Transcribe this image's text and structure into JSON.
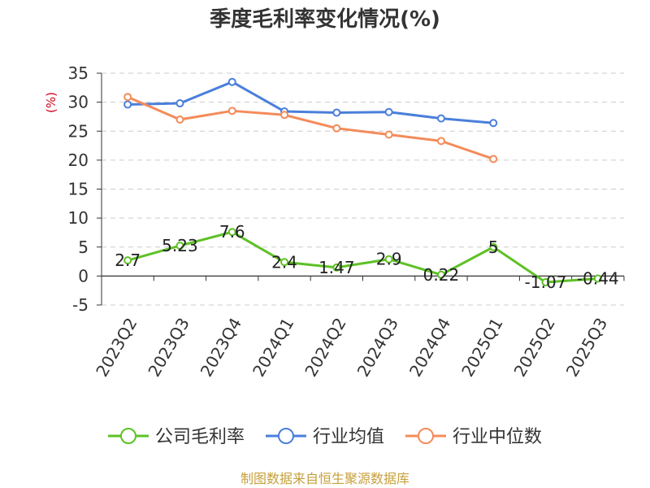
{
  "chart_data": {
    "type": "line",
    "title": "季度毛利率变化情况(%)",
    "ylabel": "(%)",
    "xlabel": "",
    "categories": [
      "2023Q2",
      "2023Q3",
      "2023Q4",
      "2024Q1",
      "2024Q2",
      "2024Q3",
      "2024Q4",
      "2025Q1",
      "2025Q2",
      "2025Q3"
    ],
    "ylim": [
      -5,
      35
    ],
    "yticks": [
      -5,
      0,
      5,
      10,
      15,
      20,
      25,
      30,
      35
    ],
    "grid": true,
    "legend_position": "bottom",
    "series": [
      {
        "name": "公司毛利率",
        "color": "#5ec126",
        "values": [
          2.7,
          5.23,
          7.6,
          2.4,
          1.47,
          2.9,
          0.22,
          5,
          -1.07,
          -0.44
        ],
        "labels": [
          "2.7",
          "5.23",
          "7.6",
          "2.4",
          "1.47",
          "2.9",
          "0.22",
          "5",
          "-1.07",
          "-0.44"
        ]
      },
      {
        "name": "行业均值",
        "color": "#4a7fdb",
        "values": [
          29.6,
          29.8,
          33.5,
          28.4,
          28.2,
          28.3,
          27.2,
          26.4,
          null,
          null
        ]
      },
      {
        "name": "行业中位数",
        "color": "#f48b59",
        "values": [
          30.9,
          27.0,
          28.5,
          27.8,
          25.5,
          24.4,
          23.3,
          20.2,
          null,
          null
        ]
      }
    ]
  },
  "source": "制图数据来自恒生聚源数据库"
}
